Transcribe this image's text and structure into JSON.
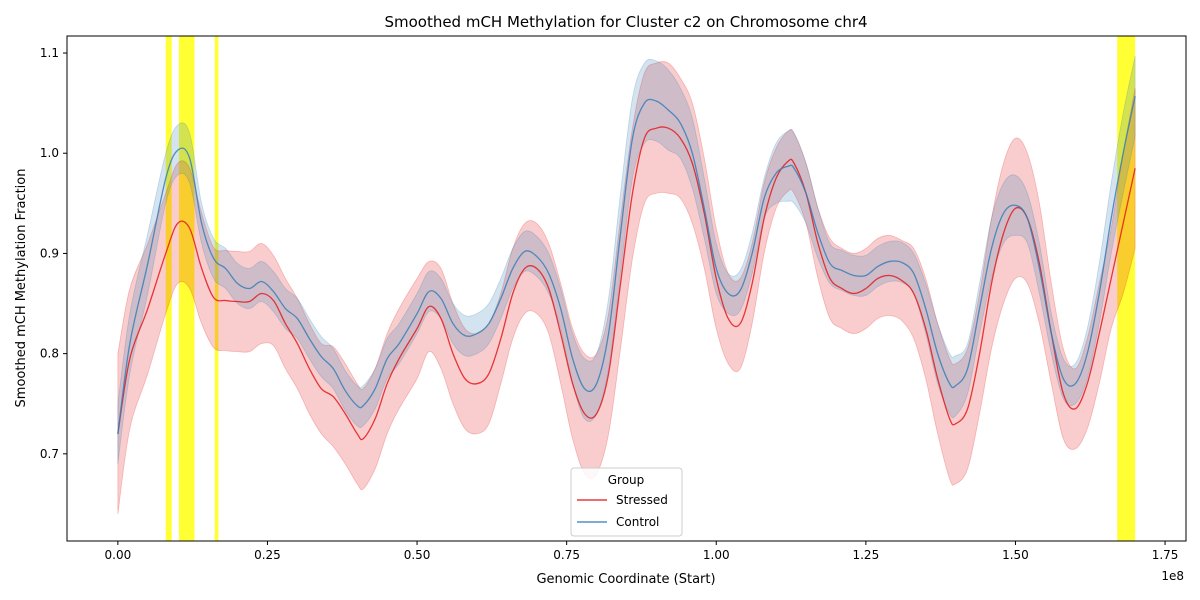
{
  "chart_data": {
    "type": "line",
    "title": "Smoothed mCH Methylation for Cluster c2 on Chromosome chr4",
    "xlabel": "Genomic Coordinate (Start)",
    "ylabel": "Smoothed mCH Methylation Fraction",
    "x_offset_text": "1e8",
    "xlim": [
      -8500000,
      178500000
    ],
    "ylim": [
      0.613,
      1.117
    ],
    "x_ticks": [
      {
        "value": 0,
        "label": "0.00"
      },
      {
        "value": 25000000,
        "label": "0.25"
      },
      {
        "value": 50000000,
        "label": "0.50"
      },
      {
        "value": 75000000,
        "label": "0.75"
      },
      {
        "value": 100000000,
        "label": "1.00"
      },
      {
        "value": 125000000,
        "label": "1.25"
      },
      {
        "value": 150000000,
        "label": "1.50"
      },
      {
        "value": 175000000,
        "label": "1.75"
      }
    ],
    "y_ticks": [
      {
        "value": 0.7,
        "label": "0.7"
      },
      {
        "value": 0.8,
        "label": "0.8"
      },
      {
        "value": 0.9,
        "label": "0.9"
      },
      {
        "value": 1.0,
        "label": "1.0"
      },
      {
        "value": 1.1,
        "label": "1.1"
      }
    ],
    "grid": false,
    "legend": {
      "title": "Group",
      "placement": "lower-center"
    },
    "highlight_regions": [
      {
        "start": 8000000,
        "end": 9000000
      },
      {
        "start": 10200000,
        "end": 12800000
      },
      {
        "start": 16200000,
        "end": 16800000
      },
      {
        "start": 167000000,
        "end": 170000000
      }
    ],
    "highlight_color": "#ffff00",
    "series": [
      {
        "name": "Stressed",
        "color": "#e41a1c",
        "x": [
          0,
          2000000,
          5000000,
          8000000,
          10000000,
          12000000,
          14000000,
          16000000,
          18000000,
          20000000,
          22000000,
          24000000,
          26000000,
          28000000,
          30000000,
          32000000,
          34000000,
          36000000,
          38000000,
          40000000,
          41000000,
          43000000,
          45000000,
          47000000,
          50000000,
          52000000,
          54000000,
          56000000,
          58000000,
          60000000,
          62000000,
          64000000,
          66000000,
          68000000,
          70000000,
          72000000,
          74000000,
          76000000,
          78000000,
          80000000,
          82000000,
          84000000,
          86000000,
          88000000,
          90000000,
          92000000,
          94000000,
          96000000,
          98000000,
          100000000,
          102000000,
          104000000,
          106000000,
          108000000,
          110000000,
          112000000,
          113000000,
          115000000,
          117000000,
          119000000,
          121000000,
          123000000,
          125000000,
          127000000,
          129000000,
          131000000,
          133000000,
          135000000,
          137000000,
          139000000,
          140000000,
          142000000,
          144000000,
          146000000,
          148000000,
          150000000,
          152000000,
          154000000,
          156000000,
          158000000,
          160000000,
          162000000,
          164000000,
          166000000,
          168000000,
          170000000
        ],
        "y": [
          0.72,
          0.795,
          0.845,
          0.9,
          0.93,
          0.925,
          0.885,
          0.856,
          0.853,
          0.852,
          0.852,
          0.86,
          0.853,
          0.83,
          0.81,
          0.785,
          0.765,
          0.757,
          0.74,
          0.72,
          0.715,
          0.735,
          0.77,
          0.795,
          0.825,
          0.847,
          0.835,
          0.8,
          0.775,
          0.77,
          0.78,
          0.815,
          0.86,
          0.885,
          0.885,
          0.865,
          0.82,
          0.77,
          0.74,
          0.74,
          0.78,
          0.87,
          0.96,
          1.015,
          1.025,
          1.025,
          1.015,
          0.99,
          0.94,
          0.875,
          0.835,
          0.83,
          0.87,
          0.935,
          0.975,
          0.992,
          0.99,
          0.96,
          0.91,
          0.875,
          0.865,
          0.86,
          0.865,
          0.875,
          0.878,
          0.873,
          0.86,
          0.825,
          0.775,
          0.735,
          0.73,
          0.745,
          0.8,
          0.87,
          0.92,
          0.945,
          0.935,
          0.89,
          0.82,
          0.76,
          0.745,
          0.77,
          0.82,
          0.875,
          0.93,
          0.985
        ],
        "band_halfwidth": [
          0.08,
          0.07,
          0.065,
          0.06,
          0.06,
          0.06,
          0.055,
          0.05,
          0.05,
          0.05,
          0.05,
          0.05,
          0.045,
          0.045,
          0.045,
          0.045,
          0.045,
          0.05,
          0.05,
          0.05,
          0.05,
          0.05,
          0.05,
          0.05,
          0.05,
          0.045,
          0.05,
          0.05,
          0.05,
          0.05,
          0.05,
          0.045,
          0.045,
          0.045,
          0.045,
          0.045,
          0.05,
          0.055,
          0.06,
          0.06,
          0.06,
          0.065,
          0.065,
          0.065,
          0.065,
          0.065,
          0.06,
          0.06,
          0.055,
          0.05,
          0.045,
          0.045,
          0.04,
          0.035,
          0.03,
          0.03,
          0.03,
          0.03,
          0.035,
          0.04,
          0.04,
          0.04,
          0.04,
          0.04,
          0.04,
          0.04,
          0.045,
          0.05,
          0.055,
          0.06,
          0.06,
          0.06,
          0.06,
          0.065,
          0.07,
          0.07,
          0.065,
          0.06,
          0.05,
          0.045,
          0.04,
          0.045,
          0.05,
          0.05,
          0.07,
          0.08
        ]
      },
      {
        "name": "Control",
        "color": "#377eb8",
        "x": [
          0,
          2000000,
          5000000,
          8000000,
          10000000,
          12000000,
          14000000,
          16000000,
          18000000,
          20000000,
          22000000,
          24000000,
          26000000,
          28000000,
          30000000,
          32000000,
          34000000,
          36000000,
          38000000,
          40000000,
          41000000,
          43000000,
          45000000,
          47000000,
          50000000,
          52000000,
          54000000,
          56000000,
          58000000,
          60000000,
          62000000,
          64000000,
          66000000,
          68000000,
          70000000,
          72000000,
          74000000,
          76000000,
          78000000,
          80000000,
          82000000,
          84000000,
          86000000,
          88000000,
          90000000,
          92000000,
          94000000,
          96000000,
          98000000,
          100000000,
          102000000,
          104000000,
          106000000,
          108000000,
          110000000,
          112000000,
          113000000,
          115000000,
          117000000,
          119000000,
          121000000,
          123000000,
          125000000,
          127000000,
          129000000,
          131000000,
          133000000,
          135000000,
          137000000,
          139000000,
          140000000,
          142000000,
          144000000,
          146000000,
          148000000,
          150000000,
          152000000,
          154000000,
          156000000,
          158000000,
          160000000,
          162000000,
          164000000,
          166000000,
          168000000,
          170000000
        ],
        "y": [
          0.72,
          0.81,
          0.89,
          0.975,
          1.003,
          0.995,
          0.93,
          0.895,
          0.885,
          0.87,
          0.865,
          0.872,
          0.862,
          0.845,
          0.835,
          0.815,
          0.797,
          0.785,
          0.763,
          0.748,
          0.748,
          0.765,
          0.795,
          0.81,
          0.84,
          0.862,
          0.855,
          0.83,
          0.818,
          0.82,
          0.83,
          0.855,
          0.885,
          0.902,
          0.897,
          0.88,
          0.845,
          0.795,
          0.765,
          0.77,
          0.82,
          0.92,
          1.015,
          1.05,
          1.052,
          1.043,
          1.03,
          1.0,
          0.945,
          0.885,
          0.86,
          0.863,
          0.9,
          0.955,
          0.98,
          0.987,
          0.985,
          0.96,
          0.92,
          0.89,
          0.883,
          0.878,
          0.878,
          0.887,
          0.892,
          0.891,
          0.88,
          0.845,
          0.8,
          0.77,
          0.768,
          0.785,
          0.845,
          0.905,
          0.94,
          0.948,
          0.935,
          0.885,
          0.82,
          0.775,
          0.77,
          0.8,
          0.86,
          0.935,
          1.0,
          1.057
        ],
        "band_halfwidth": [
          0.03,
          0.03,
          0.03,
          0.025,
          0.025,
          0.025,
          0.02,
          0.02,
          0.02,
          0.02,
          0.02,
          0.02,
          0.02,
          0.02,
          0.02,
          0.02,
          0.02,
          0.02,
          0.02,
          0.02,
          0.02,
          0.02,
          0.02,
          0.02,
          0.02,
          0.02,
          0.02,
          0.02,
          0.02,
          0.02,
          0.02,
          0.02,
          0.02,
          0.02,
          0.02,
          0.02,
          0.02,
          0.025,
          0.03,
          0.03,
          0.035,
          0.04,
          0.04,
          0.04,
          0.04,
          0.04,
          0.035,
          0.035,
          0.03,
          0.025,
          0.02,
          0.02,
          0.02,
          0.02,
          0.03,
          0.035,
          0.035,
          0.03,
          0.025,
          0.02,
          0.02,
          0.02,
          0.02,
          0.02,
          0.02,
          0.02,
          0.02,
          0.025,
          0.03,
          0.03,
          0.03,
          0.025,
          0.025,
          0.03,
          0.03,
          0.03,
          0.025,
          0.025,
          0.02,
          0.02,
          0.02,
          0.025,
          0.03,
          0.035,
          0.04,
          0.04
        ]
      }
    ]
  }
}
